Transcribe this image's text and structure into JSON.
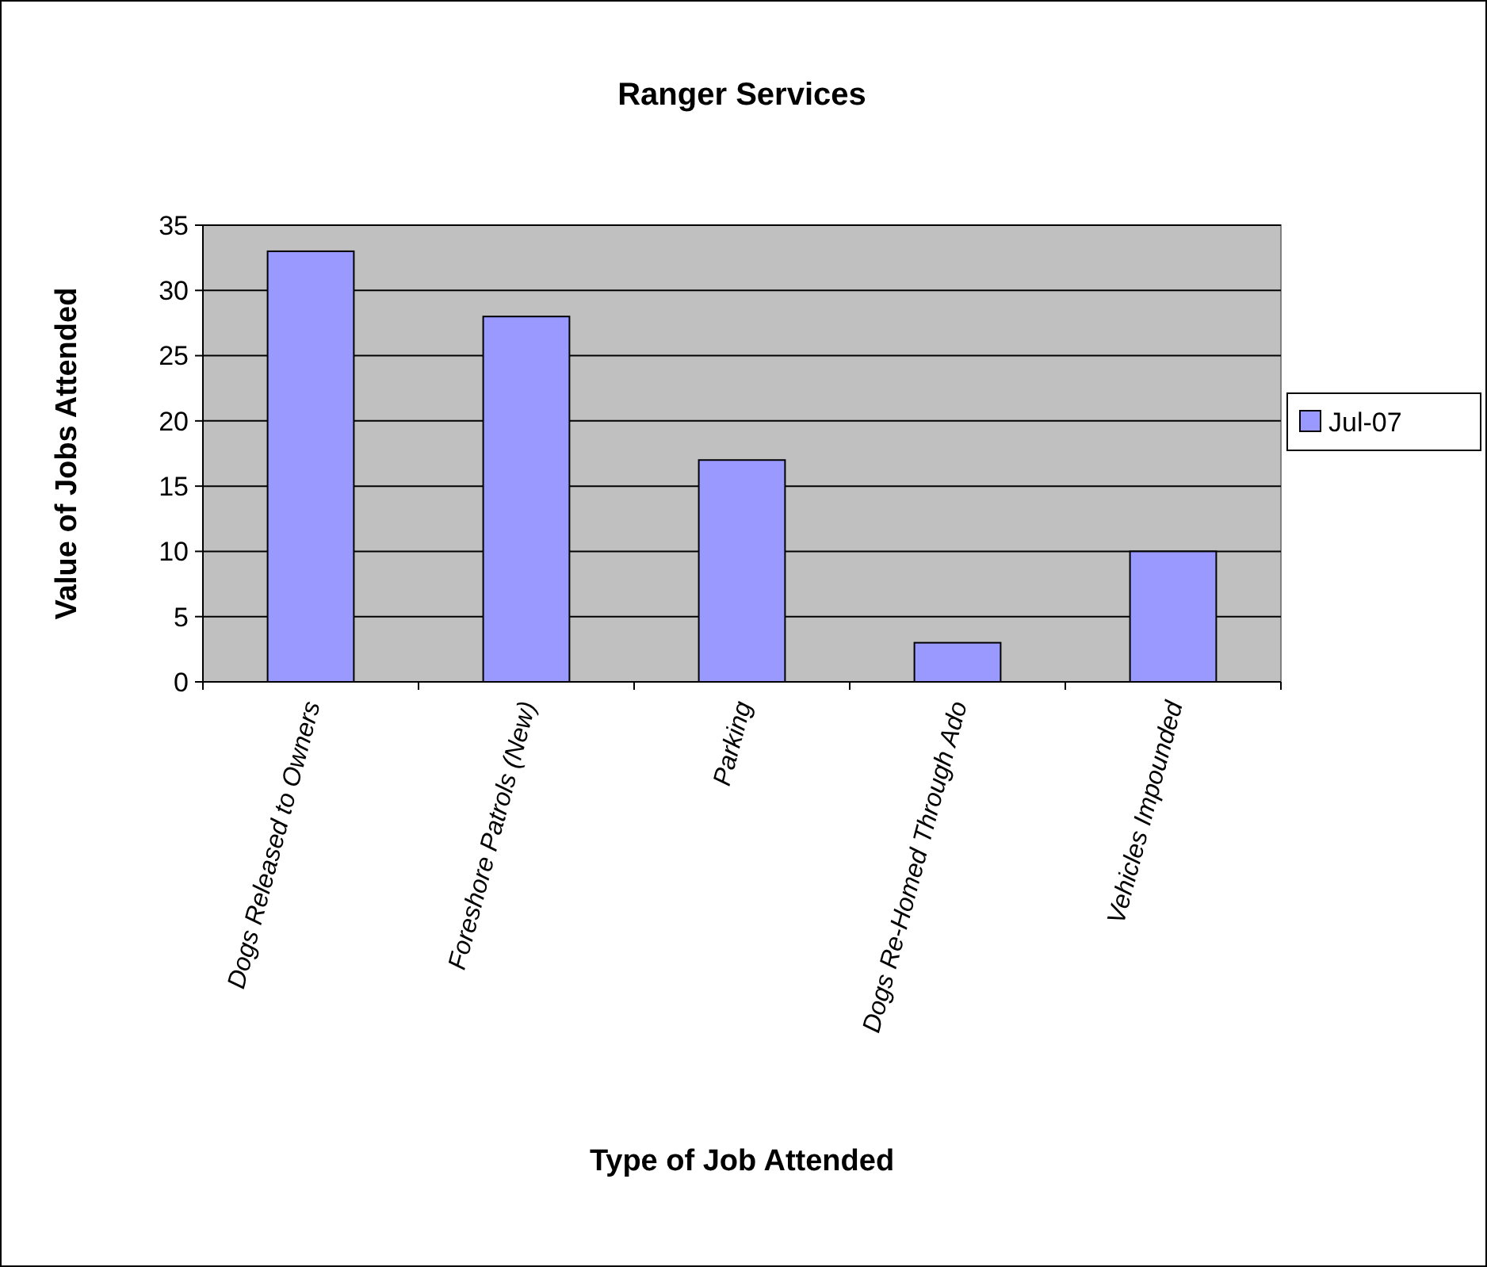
{
  "chart_data": {
    "type": "bar",
    "title": "Ranger Services",
    "xlabel": "Type of Job Attended",
    "ylabel": "Value of Jobs Attended",
    "categories": [
      "Dogs Released to Owners",
      "Foreshore Patrols (New)",
      "Parking",
      "Dogs Re-Homed Through Ado",
      "Vehicles Impounded"
    ],
    "series": [
      {
        "name": "Jul-07",
        "color": "#9999ff",
        "values": [
          33,
          28,
          17,
          3,
          10
        ]
      }
    ],
    "ylim": [
      0,
      35
    ],
    "yticks": [
      0,
      5,
      10,
      15,
      20,
      25,
      30,
      35
    ],
    "grid": "y",
    "legend": "right"
  }
}
